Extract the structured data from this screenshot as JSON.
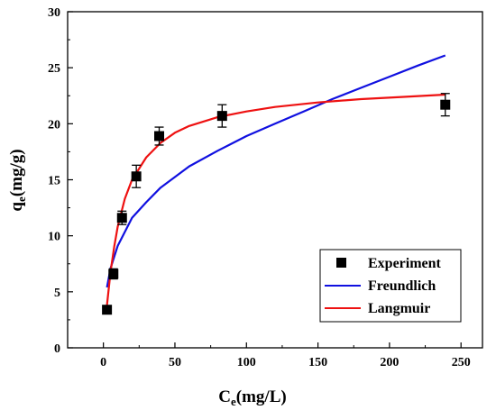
{
  "chart_data": {
    "type": "scatter",
    "xlabel": {
      "main": "C",
      "sub": "e",
      "rest": "(mg/L)"
    },
    "ylabel": {
      "main": "q",
      "sub": "e",
      "rest": "(mg/g)"
    },
    "xlim": [
      -25,
      265
    ],
    "ylim": [
      0,
      30
    ],
    "xticks": [
      0,
      50,
      100,
      150,
      200,
      250
    ],
    "yticks": [
      0,
      5,
      10,
      15,
      20,
      25,
      30
    ],
    "xtick_labels": [
      "0",
      "50",
      "100",
      "150",
      "200",
      "250"
    ],
    "ytick_labels": [
      "0",
      "5",
      "10",
      "15",
      "20",
      "25",
      "30"
    ],
    "grid": false,
    "legend_position": "bottom-right",
    "experiment": {
      "name": "Experiment",
      "color": "#000000",
      "points": [
        {
          "x": 2.5,
          "y": 3.4,
          "err": 0.25
        },
        {
          "x": 7,
          "y": 6.6,
          "err": 0.45
        },
        {
          "x": 13,
          "y": 11.6,
          "err": 0.6
        },
        {
          "x": 23,
          "y": 15.3,
          "err": 1.0
        },
        {
          "x": 39,
          "y": 18.9,
          "err": 0.8
        },
        {
          "x": 83,
          "y": 20.7,
          "err": 1.0
        },
        {
          "x": 239,
          "y": 21.7,
          "err": 1.0
        }
      ]
    },
    "series": [
      {
        "name": "Freundlich",
        "color": "#1010e0",
        "x": [
          2.5,
          5,
          10,
          20,
          30,
          40,
          60,
          80,
          100,
          120,
          140,
          160,
          180,
          200,
          220,
          239
        ],
        "y": [
          5.4,
          7.1,
          9.1,
          11.6,
          13.0,
          14.3,
          16.2,
          17.6,
          18.9,
          20.0,
          21.1,
          22.2,
          23.2,
          24.2,
          25.2,
          26.1
        ]
      },
      {
        "name": "Langmuir",
        "color": "#ee1111",
        "x": [
          2.5,
          5,
          7.5,
          10,
          15,
          20,
          30,
          40,
          50,
          60,
          80,
          100,
          120,
          150,
          180,
          210,
          239
        ],
        "y": [
          3.8,
          6.8,
          9.0,
          10.8,
          13.3,
          15.0,
          17.0,
          18.3,
          19.2,
          19.8,
          20.6,
          21.1,
          21.5,
          21.9,
          22.2,
          22.4,
          22.6
        ]
      }
    ]
  }
}
